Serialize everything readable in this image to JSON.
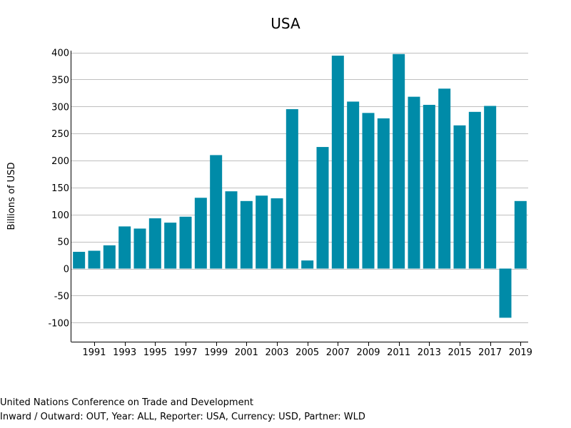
{
  "footer": {
    "source": "United Nations Conference on Trade and Development",
    "parameters": "Inward / Outward: OUT, Year: ALL, Reporter: USA, Currency: USD, Partner: WLD"
  },
  "colors": {
    "bar": "#008ba8",
    "grid": "#bfbfbf",
    "axis": "#000000"
  },
  "chart_data": {
    "type": "bar",
    "title": "USA",
    "xlabel": "",
    "ylabel": "Billions of USD",
    "ylim": [
      -135,
      400
    ],
    "yticks": [
      -100,
      -50,
      0,
      50,
      100,
      150,
      200,
      250,
      300,
      350,
      400
    ],
    "x_tick_labels": [
      "1991",
      "1993",
      "1995",
      "1997",
      "1999",
      "2001",
      "2003",
      "2005",
      "2007",
      "2009",
      "2011",
      "2013",
      "2015",
      "2017",
      "2019"
    ],
    "grid": true,
    "legend": "none",
    "categories": [
      "1990",
      "1991",
      "1992",
      "1993",
      "1994",
      "1995",
      "1996",
      "1997",
      "1998",
      "1999",
      "2000",
      "2001",
      "2002",
      "2003",
      "2004",
      "2005",
      "2006",
      "2007",
      "2008",
      "2009",
      "2010",
      "2011",
      "2012",
      "2013",
      "2014",
      "2015",
      "2016",
      "2017",
      "2018",
      "2019"
    ],
    "values": [
      31,
      33,
      43,
      78,
      74,
      93,
      85,
      96,
      131,
      210,
      143,
      125,
      135,
      130,
      295,
      15,
      225,
      394,
      309,
      288,
      278,
      397,
      318,
      303,
      333,
      265,
      290,
      301,
      -91,
      125
    ]
  }
}
